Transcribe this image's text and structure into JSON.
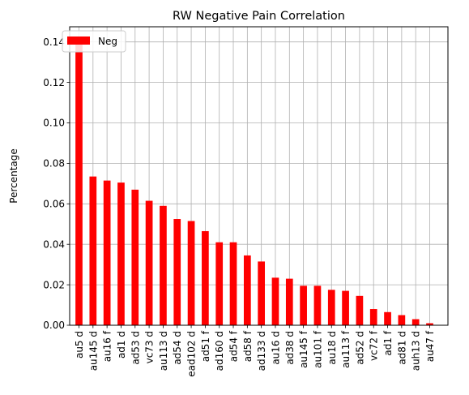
{
  "chart_data": {
    "type": "bar",
    "title": "RW Negative Pain Correlation",
    "xlabel": "",
    "ylabel": "Percentage",
    "ylim": [
      0,
      0.1475
    ],
    "yticks": [
      "0.00",
      "0.02",
      "0.04",
      "0.06",
      "0.08",
      "0.10",
      "0.12",
      "0.14"
    ],
    "grid": true,
    "legend": {
      "position": "top-left",
      "entries": [
        "Neg"
      ]
    },
    "categories": [
      "au5 d",
      "au145 d",
      "au16 f",
      "ad1 d",
      "ad53 d",
      "vc73 d",
      "au113 d",
      "ad54 d",
      "ead102 d",
      "ad51 f",
      "ad160 d",
      "ad54 f",
      "ad58 f",
      "ad133 d",
      "au16 d",
      "ad38 d",
      "au145 f",
      "au101 f",
      "au18 d",
      "au113 f",
      "ad52 d",
      "vc72 f",
      "ad1 f",
      "ad81 d",
      "auh13 d",
      "au47 f"
    ],
    "series": [
      {
        "name": "Neg",
        "color": "#ff0000",
        "values": [
          0.142,
          0.0735,
          0.0715,
          0.0705,
          0.067,
          0.0615,
          0.059,
          0.0525,
          0.0515,
          0.0465,
          0.041,
          0.041,
          0.0345,
          0.0315,
          0.0235,
          0.023,
          0.0195,
          0.0195,
          0.0175,
          0.017,
          0.0145,
          0.008,
          0.0065,
          0.005,
          0.003,
          0.001
        ]
      }
    ]
  }
}
